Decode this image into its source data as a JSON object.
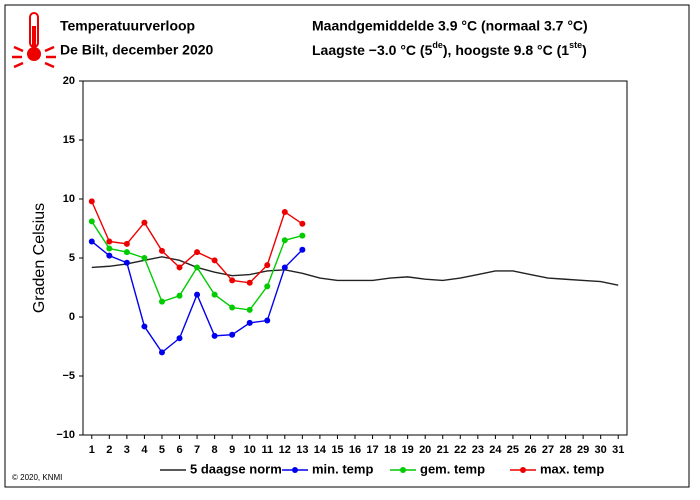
{
  "chart_data": {
    "type": "line",
    "title": "Temperatuurverloop",
    "subtitle": "De Bilt, december 2020",
    "header_right": [
      "Maandgemiddelde 3.9 °C (normaal 3.7 °C)",
      [
        "Laagste −3.0 °C (5",
        "de",
        "), hoogste 9.8 °C (1",
        "ste",
        ")"
      ]
    ],
    "ylabel": "Graden Celsius",
    "copyright": "© 2020, KNMI",
    "x": [
      1,
      2,
      3,
      4,
      5,
      6,
      7,
      8,
      9,
      10,
      11,
      12,
      13,
      14,
      15,
      16,
      17,
      18,
      19,
      20,
      21,
      22,
      23,
      24,
      25,
      26,
      27,
      28,
      29,
      30,
      31
    ],
    "xlim": [
      0.5,
      31.5
    ],
    "xticks": [
      1,
      2,
      3,
      4,
      5,
      6,
      7,
      8,
      9,
      10,
      11,
      12,
      13,
      14,
      15,
      16,
      17,
      18,
      19,
      20,
      21,
      22,
      23,
      24,
      25,
      26,
      27,
      28,
      29,
      30,
      31
    ],
    "ylim": [
      -10,
      20
    ],
    "yticks": [
      {
        "value": -10,
        "label": "−10"
      },
      {
        "value": -5,
        "label": "−5"
      },
      0,
      5,
      10,
      15,
      20
    ],
    "series": [
      {
        "name": "5 daagse norm",
        "color": "#222222",
        "markers": false,
        "values": [
          4.2,
          4.3,
          4.5,
          4.8,
          5.1,
          4.8,
          4.2,
          3.8,
          3.5,
          3.6,
          3.9,
          4.0,
          3.7,
          3.3,
          3.1,
          3.1,
          3.1,
          3.3,
          3.4,
          3.2,
          3.1,
          3.3,
          3.6,
          3.9,
          3.9,
          3.6,
          3.3,
          3.2,
          3.1,
          3.0,
          2.7
        ]
      },
      {
        "name": "min. temp",
        "color": "#0000ee",
        "markers": true,
        "values": [
          6.4,
          5.2,
          4.6,
          -0.8,
          -3.0,
          -1.8,
          1.9,
          -1.6,
          -1.5,
          -0.5,
          -0.3,
          4.2,
          5.7,
          null,
          null,
          null,
          null,
          null,
          null,
          null,
          null,
          null,
          null,
          null,
          null,
          null,
          null,
          null,
          null,
          null,
          null
        ]
      },
      {
        "name": "gem. temp",
        "color": "#00cc00",
        "markers": true,
        "values": [
          8.1,
          5.8,
          5.5,
          5.0,
          1.3,
          1.8,
          4.2,
          1.9,
          0.8,
          0.6,
          2.6,
          6.5,
          6.9,
          null,
          null,
          null,
          null,
          null,
          null,
          null,
          null,
          null,
          null,
          null,
          null,
          null,
          null,
          null,
          null,
          null,
          null
        ]
      },
      {
        "name": "max. temp",
        "color": "#ee0000",
        "markers": true,
        "values": [
          9.8,
          6.4,
          6.2,
          8.0,
          5.6,
          4.2,
          5.5,
          4.8,
          3.1,
          2.9,
          4.4,
          8.9,
          7.9,
          null,
          null,
          null,
          null,
          null,
          null,
          null,
          null,
          null,
          null,
          null,
          null,
          null,
          null,
          null,
          null,
          null,
          null
        ]
      }
    ]
  }
}
